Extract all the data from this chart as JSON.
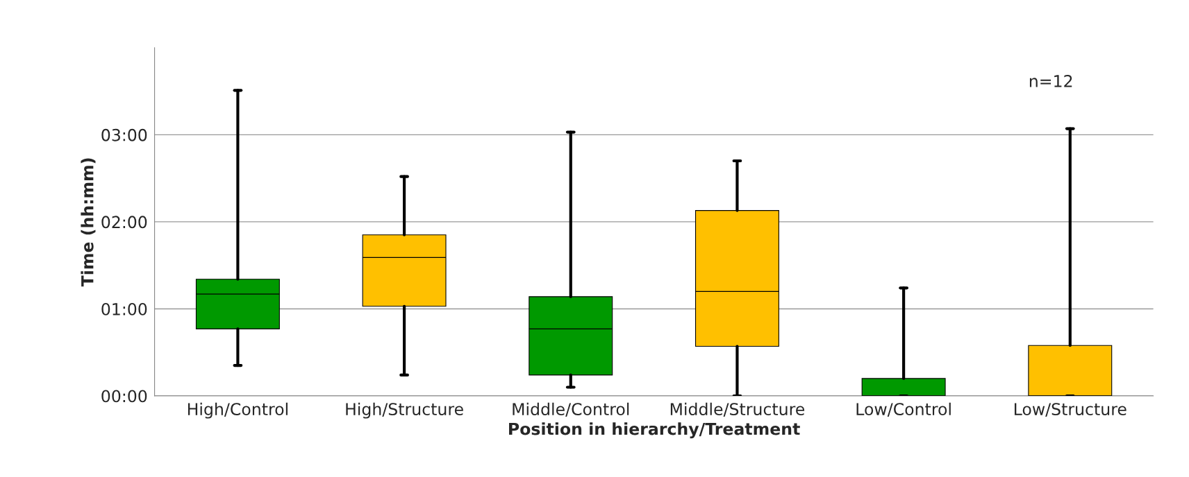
{
  "chart_data": {
    "type": "box",
    "xlabel": "Position in hierarchy/Treatment",
    "ylabel": "Time (hh:mm)",
    "categories": [
      "High/Control",
      "High/Structure",
      "Middle/Control",
      "Middle/Structure",
      "Low/Control",
      "Low/Structure"
    ],
    "colors": [
      "#009900",
      "#ffc000",
      "#009900",
      "#ffc000",
      "#009900",
      "#ffc000"
    ],
    "boxes": [
      {
        "low": 0.35,
        "q1": 0.77,
        "median": 1.17,
        "q3": 1.34,
        "high": 3.51
      },
      {
        "low": 0.24,
        "q1": 1.03,
        "median": 1.59,
        "q3": 1.85,
        "high": 2.52
      },
      {
        "low": 0.1,
        "q1": 0.24,
        "median": 0.77,
        "q3": 1.14,
        "high": 3.03
      },
      {
        "low": 0,
        "q1": 0.57,
        "median": 1.2,
        "q3": 2.13,
        "high": 2.7
      },
      {
        "low": 0,
        "q1": 0,
        "median": 0,
        "q3": 0.2,
        "high": 1.24
      },
      {
        "low": 0,
        "q1": 0,
        "median": 0,
        "q3": 0.58,
        "high": 3.07
      }
    ],
    "ylim": [
      0,
      4
    ],
    "yticks": [
      {
        "value": 0,
        "label": "00:00"
      },
      {
        "value": 1,
        "label": "01:00"
      },
      {
        "value": 2,
        "label": "02:00"
      },
      {
        "value": 3,
        "label": "03:00"
      }
    ],
    "grid": "y",
    "annotations": [
      {
        "text": "n=12"
      }
    ]
  }
}
